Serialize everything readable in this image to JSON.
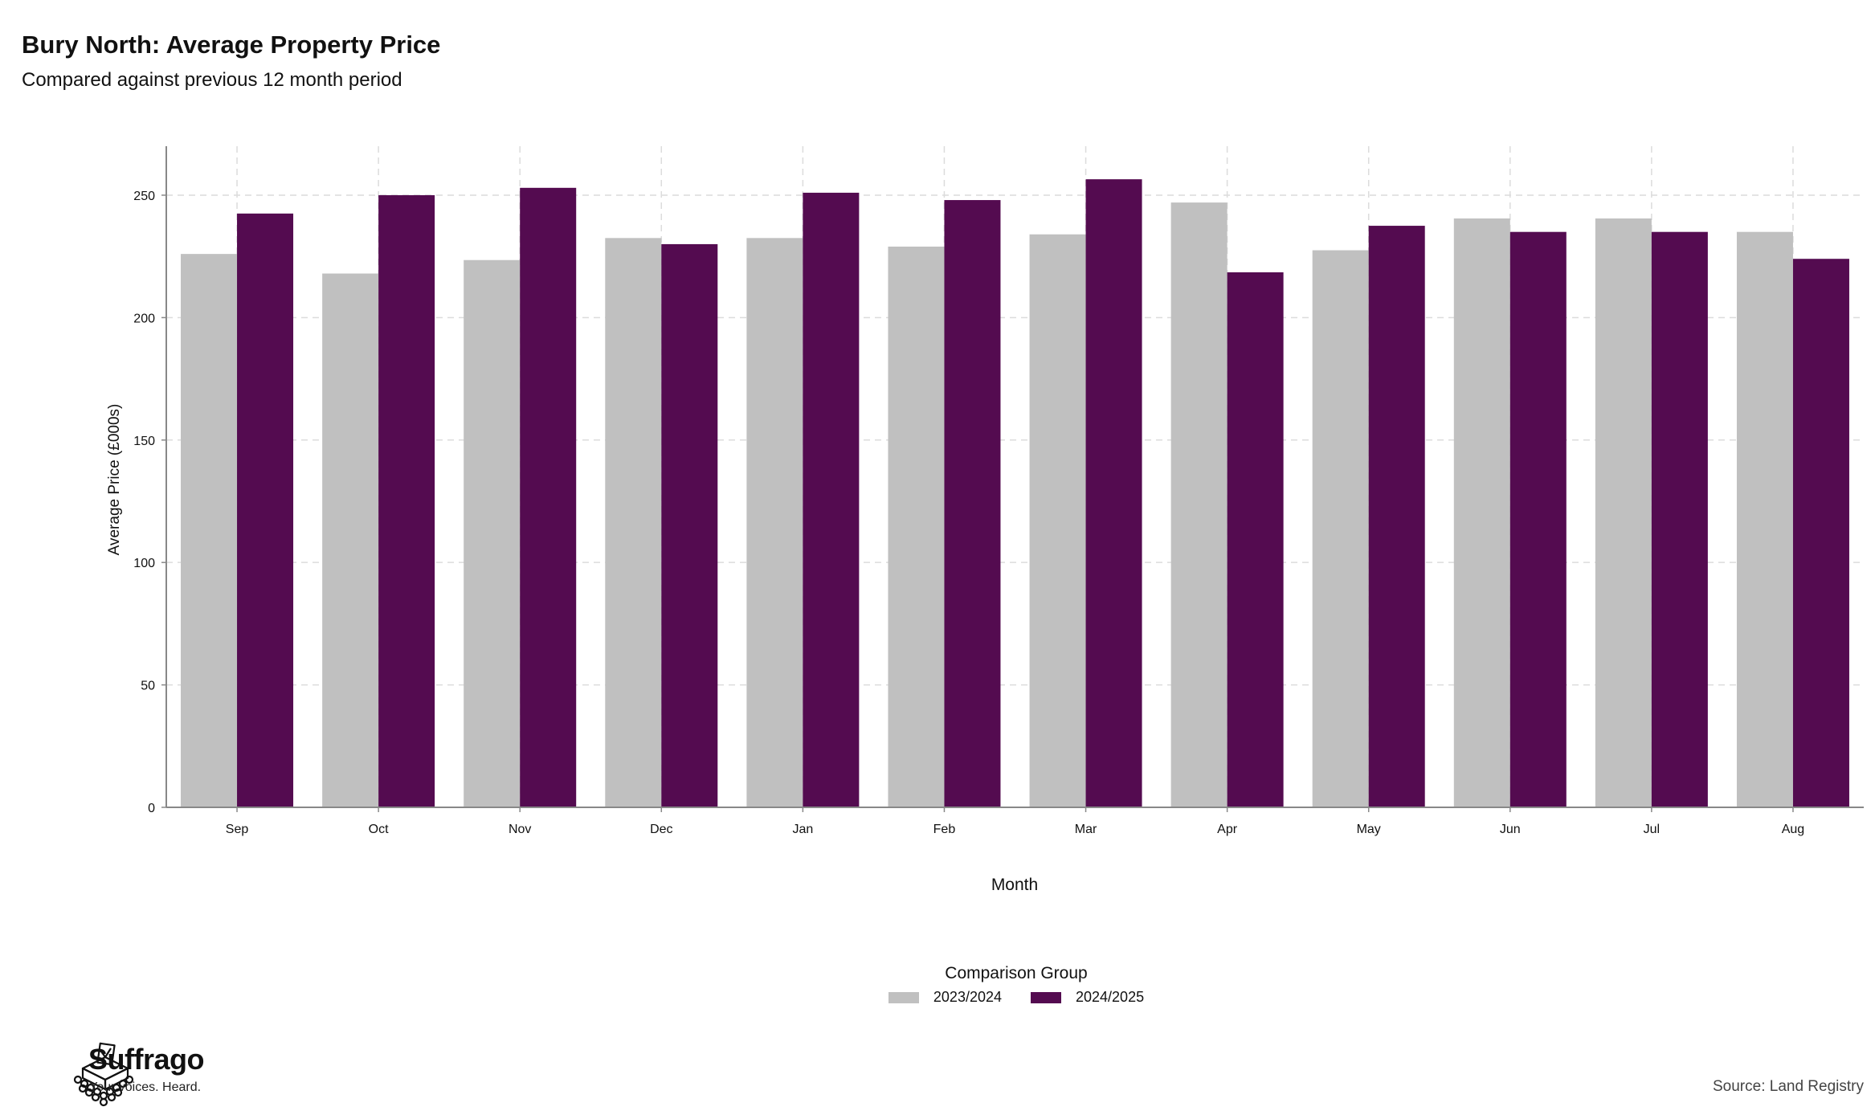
{
  "chart_data": {
    "type": "bar",
    "title": "Bury North: Average Property Price",
    "subtitle": "Compared against previous 12 month period",
    "xlabel": "Month",
    "ylabel": "Average Price (£000s)",
    "ylim": [
      0,
      270
    ],
    "yticks": [
      0,
      50,
      100,
      150,
      200,
      250
    ],
    "grid": true,
    "categories": [
      "Sep",
      "Oct",
      "Nov",
      "Dec",
      "Jan",
      "Feb",
      "Mar",
      "Apr",
      "May",
      "Jun",
      "Jul",
      "Aug"
    ],
    "series": [
      {
        "name": "2023/2024",
        "color": "#c0c0c0",
        "values": [
          226,
          218,
          223.5,
          232.5,
          232.5,
          229,
          234,
          247,
          227.5,
          240.5,
          240.5,
          235
        ]
      },
      {
        "name": "2024/2025",
        "color": "#540b50",
        "values": [
          242.5,
          250,
          253,
          230,
          251,
          248,
          256.5,
          218.5,
          237.5,
          235,
          235,
          224
        ]
      }
    ],
    "legend": {
      "title": "Comparison Group",
      "placement": "bottom"
    }
  },
  "branding": {
    "name": "Suffrago",
    "tagline": "Your voices. Heard.",
    "icon": "ballot-box-icon"
  },
  "source": "Source: Land Registry"
}
